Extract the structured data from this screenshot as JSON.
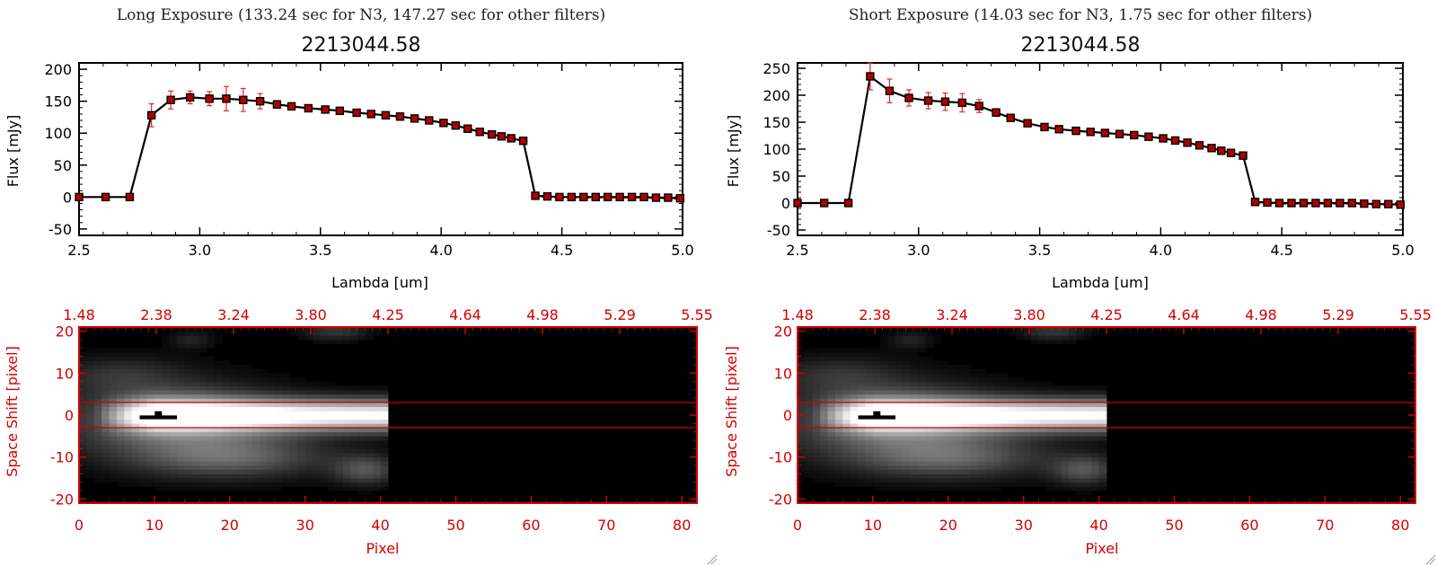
{
  "colors": {
    "line": "#000000",
    "marker": "#b00000",
    "error_bar": "#ee2222",
    "accent_axis": "#d40000",
    "extraction_lines": "#cc0000"
  },
  "panels": [
    {
      "title": "Long Exposure (133.24 sec for N3, 147.27 sec for other filters)",
      "subtitle": "2213044.58"
    },
    {
      "title": "Short Exposure (14.03 sec for N3, 1.75 sec for other filters)",
      "subtitle": "2213044.58"
    }
  ],
  "chart_data": [
    {
      "type": "line",
      "title": "2213044.58",
      "xlabel": "Lambda [um]",
      "ylabel": "Flux [mJy]",
      "xlim": [
        2.5,
        5.0
      ],
      "ylim": [
        -60,
        210
      ],
      "x_ticks": [
        "2.5",
        "3.0",
        "3.5",
        "4.0",
        "4.5",
        "5.0"
      ],
      "y_ticks": [
        "-50",
        "0",
        "50",
        "100",
        "150",
        "200"
      ],
      "series": [
        {
          "x": [
            2.5,
            2.61,
            2.71,
            2.8,
            2.88,
            2.96,
            3.04,
            3.11,
            3.18,
            3.25,
            3.32,
            3.38,
            3.45,
            3.52,
            3.58,
            3.65,
            3.71,
            3.77,
            3.83,
            3.89,
            3.95,
            4.01,
            4.06,
            4.11,
            4.16,
            4.21,
            4.25,
            4.29,
            4.34,
            4.39,
            4.44,
            4.49,
            4.54,
            4.59,
            4.64,
            4.69,
            4.74,
            4.79,
            4.84,
            4.89,
            4.94,
            4.99
          ],
          "y": [
            0,
            0,
            0,
            128,
            152,
            156,
            154,
            154,
            152,
            150,
            145,
            142,
            139,
            137,
            135,
            132,
            130,
            128,
            126,
            123,
            120,
            116,
            112,
            107,
            102,
            98,
            95,
            92,
            88,
            2,
            1,
            0,
            0,
            0,
            0,
            0,
            0,
            0,
            0,
            -1,
            -1,
            -2
          ],
          "yerr": [
            3,
            3,
            3,
            18,
            14,
            10,
            11,
            19,
            18,
            12,
            6,
            5,
            4,
            4,
            4,
            4,
            4,
            4,
            4,
            4,
            4,
            4,
            4,
            4,
            4,
            4,
            4,
            4,
            4,
            3,
            3,
            3,
            3,
            3,
            3,
            3,
            3,
            3,
            3,
            3,
            3,
            3
          ]
        }
      ]
    },
    {
      "type": "line",
      "title": "2213044.58",
      "xlabel": "Lambda [um]",
      "ylabel": "Flux [mJy]",
      "xlim": [
        2.5,
        5.0
      ],
      "ylim": [
        -60,
        260
      ],
      "x_ticks": [
        "2.5",
        "3.0",
        "3.5",
        "4.0",
        "4.5",
        "5.0"
      ],
      "y_ticks": [
        "-50",
        "0",
        "50",
        "100",
        "150",
        "200",
        "250"
      ],
      "series": [
        {
          "x": [
            2.5,
            2.61,
            2.71,
            2.8,
            2.88,
            2.96,
            3.04,
            3.11,
            3.18,
            3.25,
            3.32,
            3.38,
            3.45,
            3.52,
            3.58,
            3.65,
            3.71,
            3.77,
            3.83,
            3.89,
            3.95,
            4.01,
            4.06,
            4.11,
            4.16,
            4.21,
            4.25,
            4.29,
            4.34,
            4.39,
            4.44,
            4.49,
            4.54,
            4.59,
            4.64,
            4.69,
            4.74,
            4.79,
            4.84,
            4.89,
            4.94,
            4.99
          ],
          "y": [
            0,
            0,
            0,
            235,
            208,
            195,
            190,
            188,
            186,
            180,
            168,
            158,
            148,
            141,
            137,
            134,
            132,
            130,
            128,
            126,
            123,
            120,
            116,
            112,
            107,
            102,
            97,
            93,
            88,
            2,
            1,
            0,
            0,
            0,
            0,
            0,
            0,
            0,
            -1,
            -2,
            -2,
            -3
          ],
          "yerr": [
            3,
            3,
            3,
            25,
            22,
            15,
            15,
            16,
            17,
            12,
            7,
            6,
            5,
            5,
            5,
            5,
            5,
            5,
            5,
            5,
            5,
            5,
            5,
            5,
            5,
            5,
            5,
            5,
            5,
            3,
            3,
            3,
            3,
            3,
            3,
            3,
            3,
            3,
            3,
            3,
            3,
            3
          ]
        }
      ]
    },
    {
      "type": "heatmap",
      "xlabel": "Pixel",
      "ylabel": "Space Shift [pixel]",
      "xlim": [
        0,
        82
      ],
      "ylim": [
        -21,
        21
      ],
      "x_ticks": [
        "0",
        "10",
        "20",
        "30",
        "40",
        "50",
        "60",
        "70",
        "80"
      ],
      "y_ticks": [
        "-20",
        "-10",
        "0",
        "10",
        "20"
      ],
      "top_ticks": [
        "1.48",
        "2.38",
        "3.24",
        "3.80",
        "4.25",
        "4.64",
        "4.98",
        "5.29",
        "5.55"
      ],
      "extraction_rows": [
        -3,
        3
      ],
      "signal_xlim": [
        0,
        41
      ]
    },
    {
      "type": "heatmap",
      "xlabel": "Pixel",
      "ylabel": "Space Shift [pixel]",
      "xlim": [
        0,
        82
      ],
      "ylim": [
        -21,
        21
      ],
      "x_ticks": [
        "0",
        "10",
        "20",
        "30",
        "40",
        "50",
        "60",
        "70",
        "80"
      ],
      "y_ticks": [
        "-20",
        "-10",
        "0",
        "10",
        "20"
      ],
      "top_ticks": [
        "1.48",
        "2.38",
        "3.24",
        "3.80",
        "4.25",
        "4.64",
        "4.98",
        "5.29",
        "5.55"
      ],
      "extraction_rows": [
        -3,
        3
      ],
      "signal_xlim": [
        0,
        41
      ]
    }
  ]
}
